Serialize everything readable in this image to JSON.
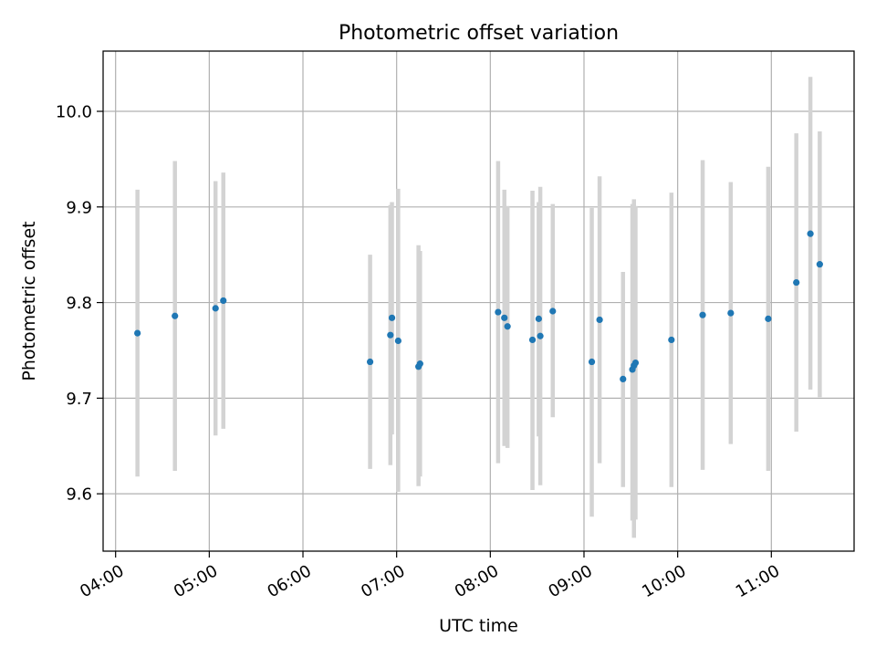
{
  "chart_data": {
    "type": "scatter",
    "title": "Photometric offset variation",
    "xlabel": "UTC time",
    "ylabel": "Photometric offset",
    "x_axis_kind": "time",
    "xlim": [
      "03:52",
      "11:53"
    ],
    "ylim": [
      9.54,
      10.063
    ],
    "x_ticks": [
      "04:00",
      "05:00",
      "06:00",
      "07:00",
      "08:00",
      "09:00",
      "10:00",
      "11:00"
    ],
    "y_ticks": [
      "9.6",
      "9.7",
      "9.8",
      "9.9",
      "10.0"
    ],
    "grid": true,
    "legend": "none",
    "marker_color": "#1f77b4",
    "errorbar_color": "#d3d3d3",
    "points": [
      {
        "x": "04:14",
        "y": 9.768,
        "ylow": 9.618,
        "yhigh": 9.918
      },
      {
        "x": "04:38",
        "y": 9.786,
        "ylow": 9.624,
        "yhigh": 9.948
      },
      {
        "x": "05:04",
        "y": 9.794,
        "ylow": 9.661,
        "yhigh": 9.927
      },
      {
        "x": "05:09",
        "y": 9.802,
        "ylow": 9.668,
        "yhigh": 9.936
      },
      {
        "x": "06:43",
        "y": 9.738,
        "ylow": 9.626,
        "yhigh": 9.85
      },
      {
        "x": "06:56",
        "y": 9.766,
        "ylow": 9.63,
        "yhigh": 9.902
      },
      {
        "x": "06:57",
        "y": 9.784,
        "ylow": 9.662,
        "yhigh": 9.905
      },
      {
        "x": "07:01",
        "y": 9.76,
        "ylow": 9.602,
        "yhigh": 9.919
      },
      {
        "x": "07:14",
        "y": 9.733,
        "ylow": 9.608,
        "yhigh": 9.86
      },
      {
        "x": "07:15",
        "y": 9.736,
        "ylow": 9.618,
        "yhigh": 9.854
      },
      {
        "x": "08:05",
        "y": 9.79,
        "ylow": 9.632,
        "yhigh": 9.948
      },
      {
        "x": "08:09",
        "y": 9.784,
        "ylow": 9.65,
        "yhigh": 9.918
      },
      {
        "x": "08:11",
        "y": 9.775,
        "ylow": 9.648,
        "yhigh": 9.901
      },
      {
        "x": "08:27",
        "y": 9.761,
        "ylow": 9.604,
        "yhigh": 9.917
      },
      {
        "x": "08:31",
        "y": 9.783,
        "ylow": 9.66,
        "yhigh": 9.905
      },
      {
        "x": "08:32",
        "y": 9.765,
        "ylow": 9.609,
        "yhigh": 9.921
      },
      {
        "x": "08:40",
        "y": 9.791,
        "ylow": 9.68,
        "yhigh": 9.903
      },
      {
        "x": "09:05",
        "y": 9.738,
        "ylow": 9.576,
        "yhigh": 9.899
      },
      {
        "x": "09:10",
        "y": 9.782,
        "ylow": 9.632,
        "yhigh": 9.932
      },
      {
        "x": "09:25",
        "y": 9.72,
        "ylow": 9.607,
        "yhigh": 9.832
      },
      {
        "x": "09:31",
        "y": 9.73,
        "ylow": 9.572,
        "yhigh": 9.903
      },
      {
        "x": "09:32",
        "y": 9.734,
        "ylow": 9.554,
        "yhigh": 9.908
      },
      {
        "x": "09:33",
        "y": 9.737,
        "ylow": 9.573,
        "yhigh": 9.901
      },
      {
        "x": "09:56",
        "y": 9.761,
        "ylow": 9.607,
        "yhigh": 9.915
      },
      {
        "x": "10:16",
        "y": 9.787,
        "ylow": 9.625,
        "yhigh": 9.949
      },
      {
        "x": "10:34",
        "y": 9.789,
        "ylow": 9.652,
        "yhigh": 9.926
      },
      {
        "x": "10:58",
        "y": 9.783,
        "ylow": 9.624,
        "yhigh": 9.942
      },
      {
        "x": "11:16",
        "y": 9.821,
        "ylow": 9.665,
        "yhigh": 9.977
      },
      {
        "x": "11:25",
        "y": 9.872,
        "ylow": 9.709,
        "yhigh": 10.036
      },
      {
        "x": "11:31",
        "y": 9.84,
        "ylow": 9.701,
        "yhigh": 9.979
      }
    ]
  }
}
